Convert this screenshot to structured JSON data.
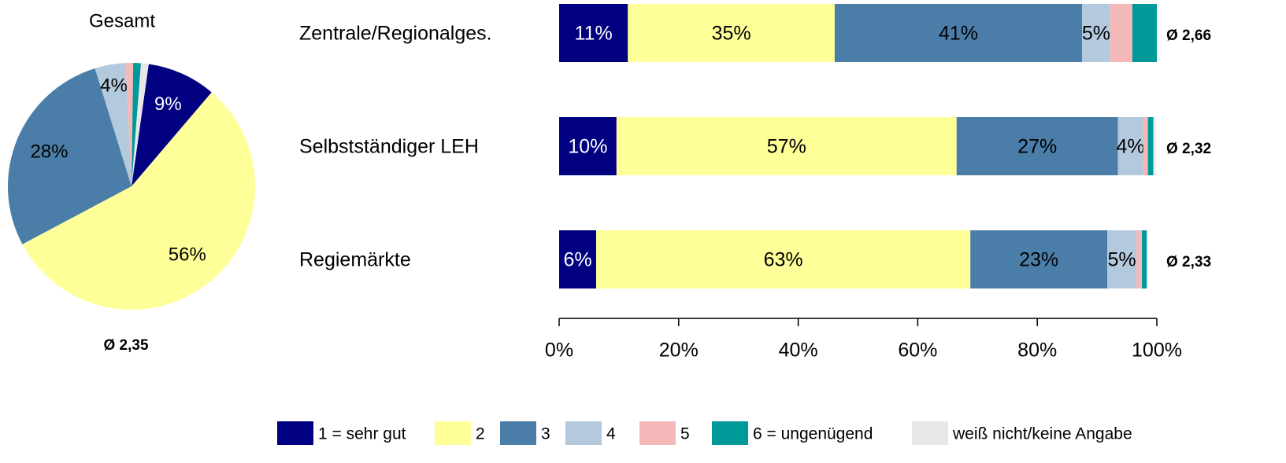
{
  "chart_data": [
    {
      "type": "pie",
      "title": "Gesamt",
      "annotation": "Ø 2,35",
      "start_angle": 8,
      "categories": [
        "1 = sehr gut",
        "2",
        "3",
        "4",
        "5",
        "6 = ungenügend",
        "weiß nicht/keine Angabe"
      ],
      "values": [
        9,
        56,
        28,
        4,
        1,
        1,
        1
      ],
      "value_labels": [
        "9%",
        "56%",
        "28%",
        "4%",
        null,
        null,
        null
      ],
      "colors": [
        "#000080",
        "#ffff99",
        "#4a7ea8",
        "#b3c9de",
        "#f4b8b8",
        "#009999",
        "#e8e8e8"
      ]
    },
    {
      "type": "bar",
      "orientation": "horizontal",
      "stacked": true,
      "categories": [
        "Zentrale/Regionalges.",
        "Selbstständiger LEH",
        "Regiemärkte"
      ],
      "annotations": [
        "Ø 2,66",
        "Ø 2,32",
        "Ø 2,33"
      ],
      "series": [
        {
          "name": "1 = sehr gut",
          "color": "#000080",
          "values": [
            11.5,
            9.6,
            6.2
          ],
          "value_labels": [
            "11%",
            "10%",
            "6%"
          ]
        },
        {
          "name": "2",
          "color": "#ffff99",
          "values": [
            34.6,
            56.9,
            62.6
          ],
          "value_labels": [
            "35%",
            "57%",
            "63%"
          ]
        },
        {
          "name": "3",
          "color": "#4a7ea8",
          "values": [
            41.4,
            27.0,
            22.9
          ],
          "value_labels": [
            "41%",
            "27%",
            "23%"
          ]
        },
        {
          "name": "4",
          "color": "#b3c9de",
          "values": [
            4.7,
            4.2,
            4.9
          ],
          "value_labels": [
            "5%",
            "4%",
            "5%"
          ]
        },
        {
          "name": "5",
          "color": "#f4b8b8",
          "values": [
            3.7,
            0.8,
            0.9
          ],
          "value_labels": [
            null,
            null,
            null
          ]
        },
        {
          "name": "6 = ungenügend",
          "color": "#009999",
          "values": [
            4.1,
            0.9,
            0.8
          ],
          "value_labels": [
            null,
            null,
            null
          ]
        },
        {
          "name": "weiß nicht/keine Angabe",
          "color": "#e8e8e8",
          "values": [
            0,
            0.4,
            0.3
          ],
          "value_labels": [
            null,
            null,
            null
          ]
        }
      ],
      "xlim": [
        0,
        100
      ],
      "xticks": [
        {
          "value": 0,
          "label": "0%"
        },
        {
          "value": 20,
          "label": "20%"
        },
        {
          "value": 40,
          "label": "40%"
        },
        {
          "value": 60,
          "label": "60%"
        },
        {
          "value": 80,
          "label": "80%"
        },
        {
          "value": 100,
          "label": "100%"
        }
      ]
    }
  ]
}
